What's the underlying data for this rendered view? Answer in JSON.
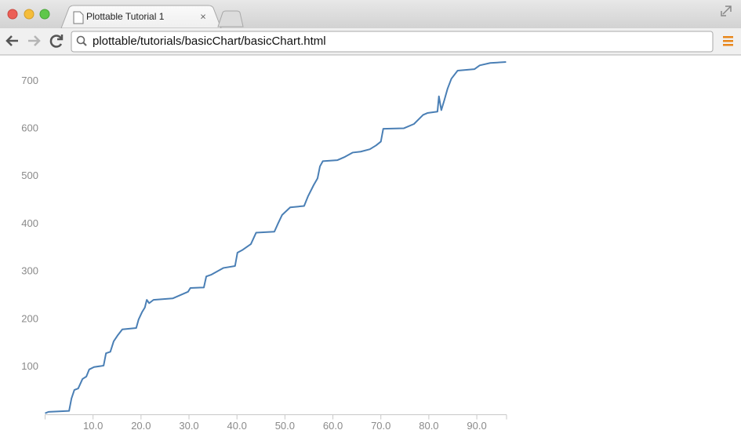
{
  "browser": {
    "tab_title": "Plottable Tutorial 1",
    "url": "plottable/tutorials/basicChart/basicChart.html"
  },
  "chart_data": {
    "type": "line",
    "x": [
      0,
      0.7,
      5,
      5.5,
      6.1,
      6.9,
      7.8,
      8.6,
      9.2,
      10.2,
      12.2,
      12.7,
      13.6,
      14.3,
      15.1,
      16.1,
      19,
      19.5,
      20.2,
      20.8,
      21.2,
      21.7,
      22.6,
      26.6,
      28.2,
      29.8,
      30.3,
      33.1,
      33.6,
      34.7,
      37.2,
      39.6,
      40.1,
      41.2,
      42.9,
      44.0,
      47.8,
      48.6,
      49.4,
      51.1,
      54,
      54.8,
      56,
      56.8,
      57.3,
      57.9,
      60.9,
      62.5,
      64.1,
      65.8,
      67.7,
      69,
      70,
      70.5,
      74.8,
      76.9,
      78.8,
      79.7,
      81.8,
      82.1,
      82.6,
      83.2,
      83.9,
      84.7,
      86,
      89.5,
      90.6,
      92.8,
      96.1
    ],
    "values": [
      3,
      6,
      8,
      34,
      52,
      55,
      75,
      80,
      95,
      100,
      103,
      129,
      132,
      154,
      166,
      179,
      182,
      200,
      215,
      225,
      241,
      234,
      241,
      244,
      251,
      258,
      266,
      267,
      290,
      294,
      308,
      312,
      340,
      346,
      358,
      382,
      384,
      402,
      419,
      435,
      438,
      458,
      482,
      496,
      521,
      532,
      534,
      541,
      550,
      552,
      557,
      565,
      573,
      600,
      601,
      610,
      629,
      633,
      636,
      668,
      639,
      659,
      684,
      705,
      722,
      725,
      733,
      738,
      740
    ],
    "color": "#4a7fb5",
    "xlim": [
      0,
      96.2
    ],
    "ylim": [
      0,
      745
    ],
    "xticks": [
      {
        "value": 10,
        "label": "10.0"
      },
      {
        "value": 20,
        "label": "20.0"
      },
      {
        "value": 30,
        "label": "30.0"
      },
      {
        "value": 40,
        "label": "40.0"
      },
      {
        "value": 50,
        "label": "50.0"
      },
      {
        "value": 60,
        "label": "60.0"
      },
      {
        "value": 70,
        "label": "70.0"
      },
      {
        "value": 80,
        "label": "80.0"
      },
      {
        "value": 90,
        "label": "90.0"
      }
    ],
    "yticks": [
      100,
      200,
      300,
      400,
      500,
      600,
      700
    ]
  }
}
